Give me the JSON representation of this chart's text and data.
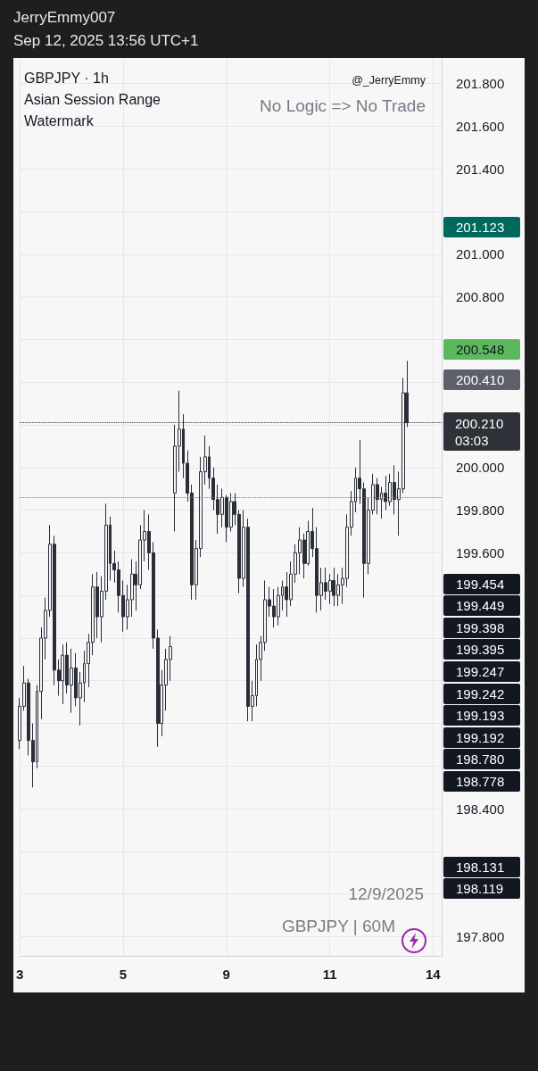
{
  "chart_data": {
    "type": "candlestick",
    "title": "GBPJPY · 1h",
    "subtitle": "Asian Session Range",
    "annotations": [
      "JerryEmmy007",
      "Sep 12, 2025 13:56 UTC+1",
      "Watermark",
      "@_JerryEmmy",
      "No Logic => No Trade",
      "12/9/2025",
      "GBPJPY | 60M",
      "201.123",
      "200.548",
      "200.410",
      "199.454",
      "199.449",
      "199.398",
      "199.395",
      "199.247",
      "199.242",
      "199.193",
      "199.192",
      "198.780",
      "198.778",
      "198.131",
      "198.119"
    ],
    "categories": [
      "3",
      null,
      null,
      null,
      null,
      null,
      null,
      null,
      null,
      null,
      null,
      null,
      null,
      null,
      null,
      null,
      null,
      null,
      null,
      null,
      null,
      null,
      null,
      null,
      "5",
      null,
      null,
      null,
      null,
      null,
      null,
      null,
      null,
      null,
      null,
      null,
      null,
      null,
      null,
      null,
      null,
      null,
      null,
      null,
      null,
      null,
      null,
      null,
      "9",
      null,
      null,
      null,
      null,
      null,
      null,
      null,
      null,
      null,
      null,
      null,
      null,
      null,
      null,
      null,
      null,
      null,
      null,
      null,
      null,
      null,
      null,
      null,
      "11",
      null,
      null,
      null,
      null,
      null,
      null,
      null,
      null,
      null,
      null,
      null,
      null,
      null,
      null,
      null,
      null,
      null,
      null,
      null,
      null,
      null,
      null,
      null,
      "14",
      null,
      null
    ],
    "ohlc": [
      [
        198.72,
        198.92,
        198.68,
        198.88
      ],
      [
        198.88,
        199.07,
        198.86,
        198.99
      ],
      [
        198.99,
        199.01,
        198.65,
        198.72
      ],
      [
        198.72,
        198.8,
        198.5,
        198.62
      ],
      [
        198.62,
        198.98,
        198.59,
        198.95
      ],
      [
        198.95,
        199.25,
        198.82,
        199.2
      ],
      [
        199.2,
        199.39,
        199.1,
        199.33
      ],
      [
        199.33,
        199.73,
        199.3,
        199.64
      ],
      [
        199.64,
        199.68,
        198.98,
        199.05
      ],
      [
        199.05,
        199.1,
        198.93,
        199.0
      ],
      [
        199.0,
        199.17,
        198.89,
        199.12
      ],
      [
        199.12,
        199.18,
        198.94,
        198.98
      ],
      [
        198.98,
        199.15,
        198.85,
        199.06
      ],
      [
        199.06,
        199.13,
        198.88,
        198.92
      ],
      [
        198.92,
        199.04,
        198.79,
        198.99
      ],
      [
        198.99,
        199.14,
        198.9,
        199.08
      ],
      [
        199.08,
        199.22,
        198.97,
        199.18
      ],
      [
        199.18,
        199.5,
        199.12,
        199.44
      ],
      [
        199.44,
        199.51,
        199.2,
        199.3
      ],
      [
        199.3,
        199.49,
        199.18,
        199.42
      ],
      [
        199.42,
        199.83,
        199.38,
        199.73
      ],
      [
        199.73,
        199.77,
        199.47,
        199.55
      ],
      [
        199.55,
        199.61,
        199.46,
        199.52
      ],
      [
        199.52,
        199.56,
        199.32,
        199.4
      ],
      [
        199.4,
        199.47,
        199.23,
        199.3
      ],
      [
        199.3,
        199.45,
        199.24,
        199.38
      ],
      [
        199.38,
        199.57,
        199.3,
        199.5
      ],
      [
        199.5,
        199.56,
        199.33,
        199.45
      ],
      [
        199.45,
        199.73,
        199.43,
        199.66
      ],
      [
        199.66,
        199.8,
        199.56,
        199.7
      ],
      [
        199.7,
        199.78,
        199.52,
        199.6
      ],
      [
        199.6,
        199.65,
        199.15,
        199.2
      ],
      [
        199.2,
        199.24,
        198.69,
        198.8
      ],
      [
        198.8,
        199.05,
        198.74,
        198.98
      ],
      [
        198.98,
        199.15,
        198.86,
        199.1
      ],
      [
        199.1,
        199.21,
        199.0,
        199.16
      ],
      [
        199.88,
        200.2,
        199.7,
        200.1
      ],
      [
        200.1,
        200.36,
        199.98,
        200.18
      ],
      [
        200.18,
        200.25,
        199.95,
        200.02
      ],
      [
        200.02,
        200.08,
        199.84,
        199.88
      ],
      [
        199.88,
        199.92,
        199.38,
        199.45
      ],
      [
        199.45,
        199.66,
        199.38,
        199.62
      ],
      [
        199.62,
        200.05,
        199.58,
        199.98
      ],
      [
        199.98,
        200.15,
        199.92,
        200.05
      ],
      [
        200.05,
        200.1,
        199.9,
        199.95
      ],
      [
        199.95,
        200.0,
        199.8,
        199.85
      ],
      [
        199.85,
        199.92,
        199.69,
        199.78
      ],
      [
        199.78,
        199.9,
        199.72,
        199.86
      ],
      [
        199.86,
        199.87,
        199.65,
        199.72
      ],
      [
        199.72,
        199.88,
        199.7,
        199.84
      ],
      [
        199.84,
        199.88,
        199.73,
        199.78
      ],
      [
        199.78,
        199.8,
        199.41,
        199.48
      ],
      [
        199.48,
        199.8,
        199.44,
        199.72
      ],
      [
        199.72,
        199.76,
        198.81,
        198.88
      ],
      [
        198.88,
        199.0,
        198.81,
        198.93
      ],
      [
        198.93,
        199.17,
        198.88,
        199.1
      ],
      [
        199.1,
        199.21,
        199.0,
        199.18
      ],
      [
        199.18,
        199.47,
        199.14,
        199.38
      ],
      [
        199.38,
        199.44,
        199.3,
        199.35
      ],
      [
        199.35,
        199.43,
        199.25,
        199.3
      ],
      [
        199.3,
        199.44,
        199.26,
        199.4
      ],
      [
        199.4,
        199.47,
        199.33,
        199.44
      ],
      [
        199.44,
        199.51,
        199.3,
        199.38
      ],
      [
        199.38,
        199.56,
        199.35,
        199.5
      ],
      [
        199.5,
        199.64,
        199.46,
        199.6
      ],
      [
        199.6,
        199.72,
        199.5,
        199.66
      ],
      [
        199.66,
        199.69,
        199.48,
        199.55
      ],
      [
        199.55,
        199.75,
        199.54,
        199.7
      ],
      [
        199.7,
        199.81,
        199.58,
        199.62
      ],
      [
        199.62,
        199.72,
        199.32,
        199.4
      ],
      [
        199.4,
        199.53,
        199.33,
        199.46
      ],
      [
        199.46,
        199.53,
        199.38,
        199.42
      ],
      [
        199.42,
        199.5,
        199.36,
        199.47
      ],
      [
        199.47,
        199.53,
        199.35,
        199.4
      ],
      [
        199.4,
        199.5,
        199.35,
        199.45
      ],
      [
        199.45,
        199.53,
        199.36,
        199.48
      ],
      [
        199.48,
        199.78,
        199.44,
        199.72
      ],
      [
        199.72,
        199.89,
        199.68,
        199.84
      ],
      [
        199.84,
        200.0,
        199.79,
        199.95
      ],
      [
        199.95,
        200.13,
        199.83,
        199.9
      ],
      [
        199.9,
        199.93,
        199.39,
        199.55
      ],
      [
        199.55,
        199.86,
        199.5,
        199.8
      ],
      [
        199.8,
        199.97,
        199.78,
        199.92
      ],
      [
        199.92,
        199.95,
        199.78,
        199.85
      ],
      [
        199.85,
        199.91,
        199.76,
        199.88
      ],
      [
        199.88,
        199.96,
        199.8,
        199.84
      ],
      [
        199.84,
        199.97,
        199.82,
        199.93
      ],
      [
        199.93,
        200.01,
        199.78,
        199.85
      ],
      [
        199.85,
        199.98,
        199.68,
        199.9
      ],
      [
        199.9,
        200.42,
        199.88,
        200.35
      ],
      [
        200.35,
        200.5,
        200.19,
        200.21
      ],
      null,
      null,
      null,
      null,
      null,
      null,
      null,
      null
    ],
    "color": "#2a2e39",
    "ylim": [
      197.71,
      201.92
    ],
    "yticks": [
      {
        "value": 197.8,
        "label": "197.800"
      },
      {
        "value": 198.0,
        "label": null
      },
      {
        "value": 198.2,
        "label": null
      },
      {
        "value": 198.4,
        "label": "198.400"
      },
      {
        "value": 198.6,
        "label": null
      },
      {
        "value": 198.8,
        "label": null
      },
      {
        "value": 199.0,
        "label": null
      },
      {
        "value": 199.2,
        "label": null
      },
      {
        "value": 199.4,
        "label": null
      },
      {
        "value": 199.6,
        "label": "199.600"
      },
      {
        "value": 199.8,
        "label": "199.800"
      },
      {
        "value": 200.0,
        "label": "200.000"
      },
      {
        "value": 200.2,
        "label": null
      },
      {
        "value": 200.4,
        "label": null
      },
      {
        "value": 200.6,
        "label": null
      },
      {
        "value": 200.8,
        "label": "200.800"
      },
      {
        "value": 201.0,
        "label": "201.000"
      },
      {
        "value": 201.2,
        "label": null
      },
      {
        "value": 201.4,
        "label": "201.400"
      },
      {
        "value": 201.6,
        "label": "201.600"
      },
      {
        "value": 201.8,
        "label": "201.800"
      }
    ],
    "grid": true,
    "ref_lines": [
      {
        "axis": "y",
        "value": 200.21,
        "label": "200.210\n03:03",
        "color": "#2f3138",
        "line_style": "dotted"
      },
      {
        "axis": "y",
        "value": 199.86,
        "color": "#787b86",
        "line_style": "dotted"
      }
    ]
  }
}
